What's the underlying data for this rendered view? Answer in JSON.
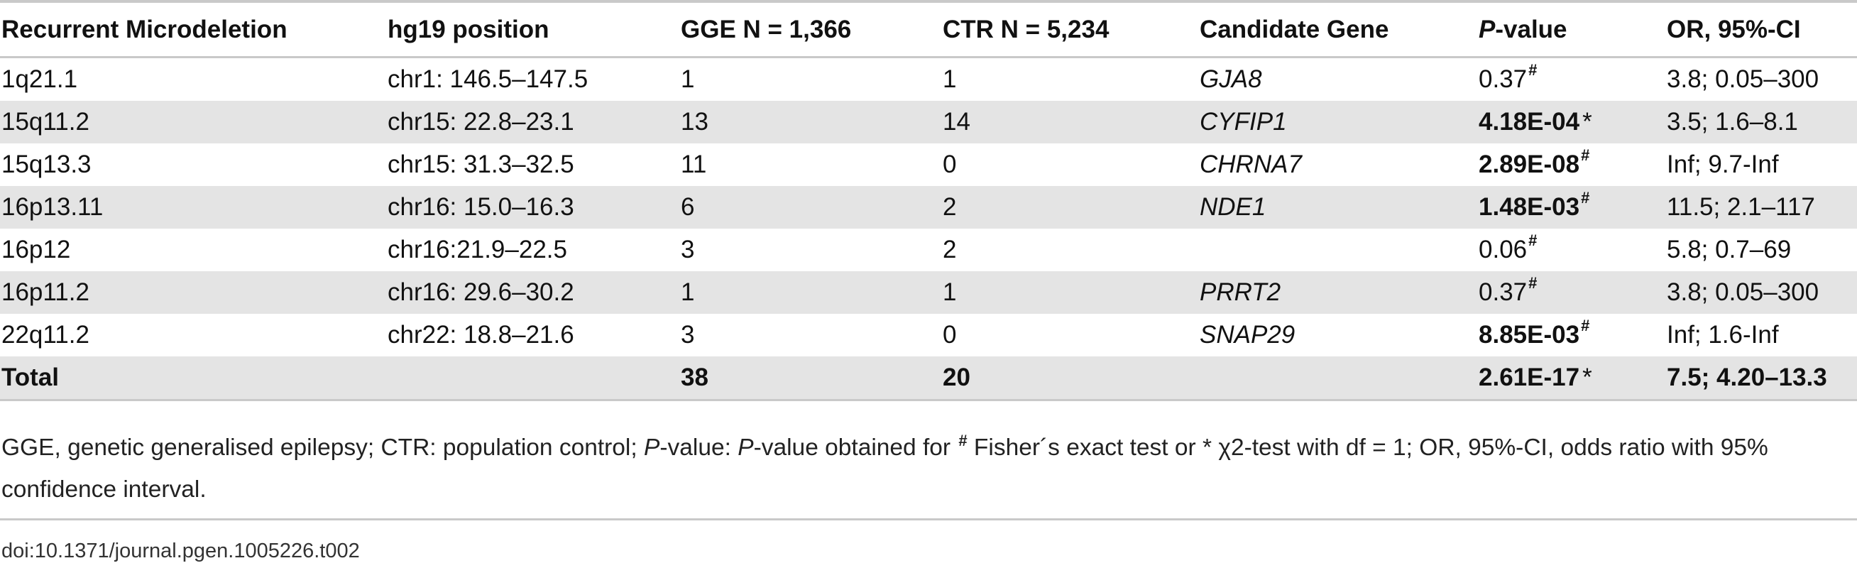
{
  "header": {
    "col0": "Recurrent Microdeletion",
    "col1": "hg19 position",
    "col2": "GGE N = 1,366",
    "col3": "CTR N = 5,234",
    "col4": "Candidate Gene",
    "col5_italic": "P",
    "col5_rest": "-value",
    "col6": "OR, 95%-CI"
  },
  "rows": [
    {
      "deletion": "1q21.1",
      "position": "chr1: 146.5–147.5",
      "gge": "1",
      "ctr": "1",
      "gene": "GJA8",
      "pvalue": "0.37",
      "mark": "#",
      "or": "3.8; 0.05–300"
    },
    {
      "deletion": "15q11.2",
      "position": "chr15: 22.8–23.1",
      "gge": "13",
      "ctr": "14",
      "gene": "CYFIP1",
      "pvalue": "4.18E-04",
      "mark": "*",
      "or": "3.5; 1.6–8.1"
    },
    {
      "deletion": "15q13.3",
      "position": "chr15: 31.3–32.5",
      "gge": "11",
      "ctr": "0",
      "gene": "CHRNA7",
      "pvalue": "2.89E-08",
      "mark": "#",
      "or": "Inf; 9.7-Inf"
    },
    {
      "deletion": "16p13.11",
      "position": "chr16: 15.0–16.3",
      "gge": "6",
      "ctr": "2",
      "gene": "NDE1",
      "pvalue": "1.48E-03",
      "mark": "#",
      "or": "11.5; 2.1–117"
    },
    {
      "deletion": "16p12",
      "position": "chr16:21.9–22.5",
      "gge": "3",
      "ctr": "2",
      "gene": "",
      "pvalue": "0.06",
      "mark": "#",
      "or": "5.8; 0.7–69"
    },
    {
      "deletion": "16p11.2",
      "position": "chr16: 29.6–30.2",
      "gge": "1",
      "ctr": "1",
      "gene": "PRRT2",
      "pvalue": "0.37",
      "mark": "#",
      "or": "3.8; 0.05–300"
    },
    {
      "deletion": "22q11.2",
      "position": "chr22: 18.8–21.6",
      "gge": "3",
      "ctr": "0",
      "gene": "SNAP29",
      "pvalue": "8.85E-03",
      "mark": "#",
      "or": "Inf; 1.6-Inf"
    }
  ],
  "total": {
    "label": "Total",
    "gge": "38",
    "ctr": "20",
    "pvalue": "2.61E-17",
    "mark": "*",
    "or": "7.5; 4.20–13.3"
  },
  "footnote": {
    "part1": "GGE, genetic generalised epilepsy; CTR: population control; ",
    "p1": "P",
    "part2": "-value: ",
    "p2": "P",
    "part3": "-value obtained for ",
    "hash": "#",
    "part4": " Fisher´s exact test or * ",
    "chi": "χ",
    "part5": "2-test with df = 1; OR, 95%-CI, odds ratio with 95% confidence interval."
  },
  "doi": "doi:10.1371/journal.pgen.1005226.t002"
}
